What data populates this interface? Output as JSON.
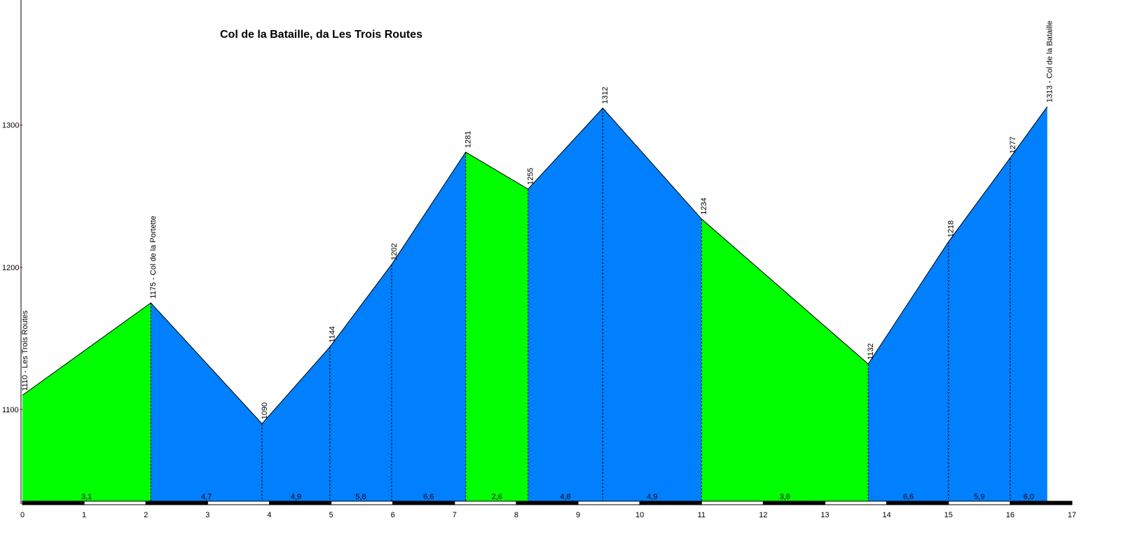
{
  "chart_data": {
    "type": "profile",
    "title": "Col de la Bataille, da Les Trois Routes",
    "x": [
      0,
      2.08,
      3.88,
      4.98,
      5.98,
      7.18,
      8.19,
      9.4,
      11.0,
      13.7,
      15.0,
      16.0,
      16.6
    ],
    "values": [
      1110,
      1175,
      1090,
      1144,
      1202,
      1281,
      1255,
      1312,
      1234,
      1132,
      1218,
      1277,
      1313
    ],
    "value_labels": [
      "1110 - Les Trois Routes",
      "1175 - Col de la Portette",
      null,
      null,
      null,
      null,
      null,
      null,
      null,
      null,
      null,
      null,
      "1313 - Col de la Bataille"
    ],
    "segments": {
      "values": [
        3.1,
        4.7,
        4.9,
        5.8,
        6.6,
        2.6,
        4.8,
        4.9,
        3.8,
        6.6,
        5.9,
        6.0
      ],
      "value_labels": [
        "3,1",
        "4,7",
        "4,9",
        "5,8",
        "6,6",
        "2,6",
        "4,8",
        "4,9",
        "3,8",
        "6,6",
        "5,9",
        "6,0"
      ],
      "colors": [
        "#00ff00",
        "#0080ff",
        "#0080ff",
        "#0080ff",
        "#0080ff",
        "#00ff00",
        "#0080ff",
        "#0080ff",
        "#00ff00",
        "#0080ff",
        "#0080ff",
        "#0080ff"
      ]
    },
    "xlim": [
      0,
      17
    ],
    "xticks": [
      0,
      1,
      2,
      3,
      4,
      5,
      6,
      7,
      8,
      9,
      10,
      11,
      12,
      13,
      14,
      15,
      16,
      17
    ],
    "ylim": [
      1034.5,
      1388
    ],
    "yticks": [
      1100,
      1200,
      1300
    ]
  }
}
